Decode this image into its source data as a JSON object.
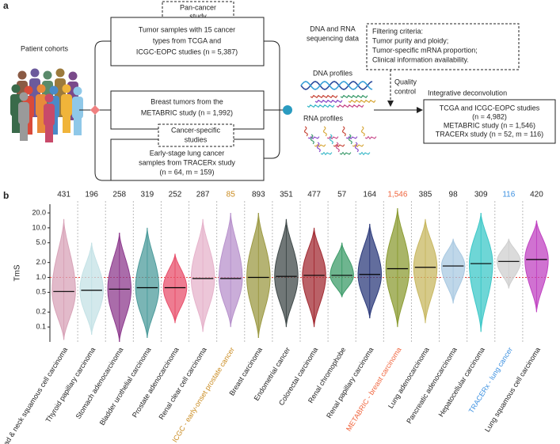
{
  "panel_a": {
    "label": "a",
    "cohorts_label": "Patient cohorts",
    "pan_cancer_tag": [
      "Pan-cancer",
      "study"
    ],
    "boxes": [
      [
        "Tumor samples with 15 cancer",
        "types from TCGA and",
        "ICGC-EOPC studies (n = 5,387)"
      ],
      [
        "Breast tumors from the",
        "METABRIC study (n = 1,992)"
      ],
      [
        "Early-stage lung cancer",
        "samples from TRACERx study",
        "(n = 64, m = 159)"
      ]
    ],
    "cancer_specific_tag": [
      "Cancer-specific",
      "studies"
    ],
    "sequencing": [
      "DNA and RNA",
      "sequencing data"
    ],
    "dna_label": "DNA profiles",
    "rna_label": "RNA profiles",
    "filtering": [
      "Filtering criteria:",
      "Tumor purity and ploidy;",
      "Tumor-specific mRNA proportion;",
      "Clinical information availability."
    ],
    "quality": [
      "Quality",
      "control"
    ],
    "deconvolution_title": "Integrative deconvolution",
    "deconvolution": [
      "TCGA and ICGC-EOPC studies",
      "(n = 4,982)",
      "METABRIC study (n = 1,546)",
      "TRACERx study (n = 52, m = 116)"
    ]
  },
  "chart_data": {
    "type": "violin",
    "panel_label": "b",
    "ylabel": "TmS",
    "log_y": true,
    "ylim": [
      0.05,
      30
    ],
    "yticks": [
      0.1,
      0.2,
      0.5,
      {
        "value": 1,
        "label": "1.0"
      },
      {
        "value": 2,
        "label": "2.0"
      },
      {
        "value": 5,
        "label": "5.0"
      },
      {
        "value": 10,
        "label": "10.0"
      },
      {
        "value": 20,
        "label": "20.0"
      }
    ],
    "reference_line": 1,
    "reference_color": "#e8443a",
    "categories": [
      "Head & neck squamous cell carcinoma",
      "Thyroid papillary carcinoma",
      "Stomach adenocarcinoma",
      "Bladder urothelial carcinoma",
      "Prostate adenocarcinoma",
      "Renal clear cell carcinoma",
      "ICGC - early-onset prostate cancer",
      "Breast carcinoma",
      "Endometrial cancer",
      "Colorectal carcinoma",
      "Renal chromophobe",
      "Renal papillary carcinoma",
      "METABRIC - breast carcinoma",
      "Lung adenocarcinoma",
      "Pancreatic adenocarcinoma",
      "Hepatocellular carcinoma",
      "TRACERx - lung cancer",
      "Lung squamous cell carcinoma"
    ],
    "counts": [
      431,
      196,
      258,
      319,
      252,
      287,
      85,
      893,
      351,
      477,
      57,
      164,
      {
        "value": 1546,
        "label": "1,546"
      },
      385,
      98,
      309,
      116,
      420
    ],
    "label_colors": [
      "#222",
      "#222",
      "#222",
      "#222",
      "#222",
      "#222",
      "#c98a1e",
      "#222",
      "#222",
      "#222",
      "#222",
      "#222",
      "#f0643c",
      "#222",
      "#222",
      "#222",
      "#3a8fe0",
      "#222"
    ],
    "colors": [
      "#d8a3b8",
      "#c4e2e6",
      "#8e3b8e",
      "#4e9c9c",
      "#e8506c",
      "#e6b3cb",
      "#b892cc",
      "#9c9a44",
      "#404a4a",
      "#a32c34",
      "#3e9c6a",
      "#2e3c7c",
      "#8c9c34",
      "#c8b862",
      "#a9c9e2",
      "#3ec8c8",
      "#cfcfcf",
      "#c043c2"
    ],
    "min": [
      0.055,
      0.07,
      0.05,
      0.06,
      0.12,
      0.08,
      0.1,
      0.06,
      0.1,
      0.1,
      0.4,
      0.15,
      0.1,
      0.12,
      0.3,
      0.08,
      0.6,
      0.2
    ],
    "median": [
      0.52,
      0.55,
      0.58,
      0.62,
      0.62,
      0.95,
      0.95,
      1.0,
      1.05,
      1.1,
      1.1,
      1.15,
      1.5,
      1.6,
      1.7,
      1.9,
      2.1,
      2.3
    ],
    "max": [
      15,
      5,
      8,
      10,
      3,
      15,
      20,
      20,
      15,
      10,
      5,
      12,
      25,
      15,
      6,
      20,
      6,
      14
    ]
  }
}
